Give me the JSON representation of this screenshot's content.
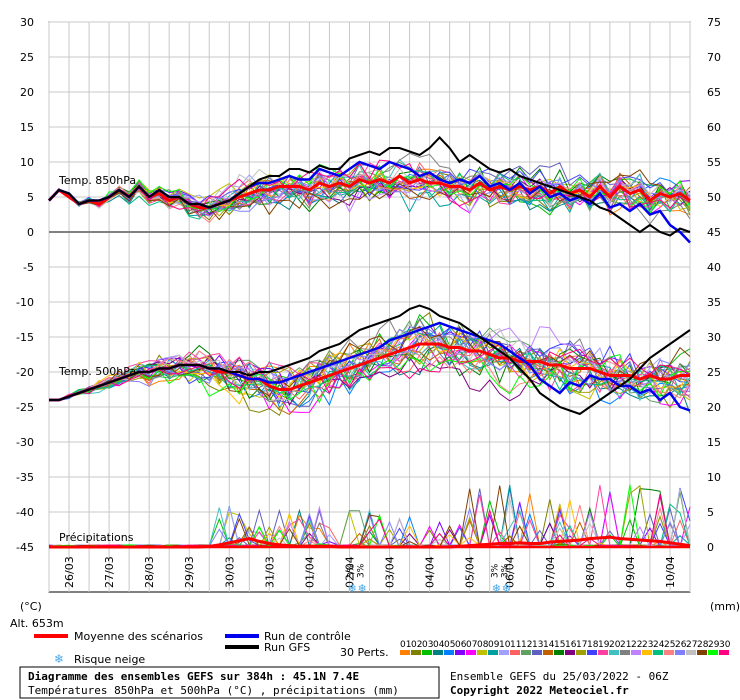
{
  "chart_data": {
    "type": "line",
    "title": "Diagramme des ensembles GEFS sur 384h : 45.1N 7.4E",
    "subtitle": "Températures 850hPa et 500hPa (°C) , précipitations (mm)",
    "run_info": "Ensemble GEFS du 25/03/2022 - 06Z",
    "copyright": "Copyright 2022 Meteociel.fr",
    "altitude": "Alt. 653m",
    "left_unit": "(°C)",
    "right_unit": "(mm)",
    "y_left_ticks": [
      "30",
      "25",
      "20",
      "15",
      "10",
      "5",
      "0",
      "-5",
      "-10",
      "-15",
      "-20",
      "-25",
      "-30",
      "-35",
      "-40",
      "-45"
    ],
    "y_right_ticks": [
      "75",
      "70",
      "65",
      "60",
      "55",
      "50",
      "45",
      "40",
      "35",
      "30",
      "25",
      "20",
      "15",
      "10",
      "5",
      "0"
    ],
    "ylim_left": [
      -45,
      30
    ],
    "dates": [
      "26/03",
      "27/03",
      "28/03",
      "29/03",
      "30/03",
      "31/03",
      "01/04",
      "02/04",
      "03/04",
      "04/04",
      "05/04",
      "06/04",
      "07/04",
      "08/04",
      "09/04",
      "10/04"
    ],
    "labels": {
      "t850": "Temp. 850hPa",
      "t500": "Temp. 500hPa",
      "precip": "Précipitations"
    },
    "snow_markers": [
      {
        "text": "3%",
        "day": 7.6
      },
      {
        "text": "3%",
        "day": 11.2
      }
    ],
    "series": [
      {
        "name": "Moyenne des scénarios",
        "color": "#ff0000",
        "t850": [
          4.5,
          6,
          5,
          4,
          4.5,
          4,
          5,
          6,
          5,
          6.5,
          5,
          5.5,
          4.5,
          5,
          4,
          3.5,
          3.5,
          4,
          4.5,
          5,
          5.5,
          6,
          6,
          6.5,
          6.5,
          6.5,
          6,
          7,
          6.5,
          7,
          6.5,
          7.5,
          7,
          7.5,
          7,
          8,
          7,
          7.5,
          7,
          7,
          6.5,
          6.5,
          6,
          7,
          6,
          6.5,
          6,
          6.5,
          6,
          6.5,
          5.5,
          6.5,
          5.5,
          6,
          5,
          6.5,
          5,
          6.5,
          5.5,
          6,
          4.5,
          5.5,
          5,
          5.5,
          4.5
        ],
        "t500": [
          -24,
          -24,
          -23.5,
          -23,
          -22.5,
          -22,
          -21.5,
          -21,
          -20.5,
          -20,
          -20,
          -19.5,
          -19.5,
          -19,
          -19,
          -19,
          -19.5,
          -20,
          -20,
          -20.5,
          -21,
          -21,
          -22,
          -22.5,
          -22.5,
          -22,
          -21.5,
          -21,
          -20.5,
          -20,
          -19.5,
          -19,
          -18.5,
          -18,
          -17.5,
          -17,
          -16.5,
          -16,
          -16,
          -16,
          -16.5,
          -16.5,
          -17,
          -17,
          -17.5,
          -18,
          -18,
          -18.5,
          -18.5,
          -18.5,
          -19,
          -19,
          -19.5,
          -19.5,
          -19.5,
          -20,
          -20.5,
          -20.5,
          -20.5,
          -21,
          -20.5,
          -21,
          -21,
          -20.5,
          -20.5
        ]
      },
      {
        "name": "Run de contrôle",
        "color": "#0000ee",
        "t850": [
          4.5,
          6,
          5.5,
          4,
          4.5,
          4.5,
          5,
          6,
          5,
          6.5,
          5,
          6,
          5,
          5,
          4,
          4,
          3.5,
          4,
          4.5,
          5.5,
          6.5,
          7,
          7,
          7.5,
          8,
          7.5,
          7.5,
          9,
          8.5,
          8,
          9,
          10,
          9.5,
          9,
          10,
          9.5,
          9,
          8,
          8.5,
          7.5,
          7,
          7.5,
          7,
          8,
          6.5,
          7,
          6,
          7,
          5.5,
          6.5,
          5,
          5.5,
          4.5,
          5,
          4,
          5.5,
          3.5,
          4,
          3,
          4,
          2.5,
          3,
          1,
          0,
          -1.5
        ],
        "t500": [
          -24,
          -24,
          -23.5,
          -23,
          -22.5,
          -22,
          -21.5,
          -21,
          -20.5,
          -20,
          -20,
          -19.5,
          -19.5,
          -19,
          -19,
          -19,
          -19.5,
          -19.5,
          -20,
          -20.5,
          -21,
          -21,
          -21.5,
          -21.5,
          -21,
          -20.5,
          -20,
          -19.5,
          -19,
          -18.5,
          -18,
          -17.5,
          -17,
          -16.5,
          -15.5,
          -15,
          -14.5,
          -14,
          -13.5,
          -13,
          -13.5,
          -14,
          -14.5,
          -15,
          -15.5,
          -16,
          -17,
          -18,
          -19,
          -21,
          -22,
          -23,
          -21.5,
          -22,
          -20.5,
          -21,
          -21,
          -22,
          -22,
          -23,
          -22.5,
          -24,
          -23,
          -25,
          -25.5
        ]
      },
      {
        "name": "Run GFS",
        "color": "#000000",
        "t850": [
          4.5,
          6,
          5.5,
          4,
          4.5,
          4.5,
          5,
          6,
          5,
          6.5,
          5,
          6,
          5,
          5,
          4,
          4,
          3.5,
          4,
          4.5,
          5.5,
          6.5,
          7.5,
          8,
          8,
          9,
          9,
          8.5,
          9.5,
          9,
          9,
          10.5,
          11,
          11.5,
          11,
          12,
          12,
          11.5,
          11,
          12,
          13.5,
          12,
          10,
          11,
          10,
          9,
          8.5,
          9,
          8,
          7.5,
          7,
          6.5,
          6,
          5.5,
          5,
          4.5,
          3.5,
          3,
          2,
          1,
          0,
          1,
          0,
          -0.5,
          0.5,
          0
        ],
        "t500": [
          -24,
          -24,
          -23.5,
          -23,
          -22.5,
          -22,
          -21.5,
          -21,
          -20.5,
          -20,
          -20,
          -19.5,
          -19.5,
          -19,
          -19,
          -19,
          -19.5,
          -19.5,
          -20,
          -20,
          -20.5,
          -20,
          -20,
          -19.5,
          -19,
          -18.5,
          -18,
          -17,
          -16.5,
          -16,
          -15,
          -14,
          -13.5,
          -13,
          -12.5,
          -12,
          -11,
          -10.5,
          -11,
          -12,
          -12.5,
          -13,
          -14,
          -15,
          -16,
          -17,
          -18,
          -19.5,
          -21,
          -23,
          -24,
          -25,
          -25.5,
          -26,
          -25,
          -24,
          -23,
          -22,
          -21,
          -19.5,
          -18,
          -17,
          -16,
          -15,
          -14
        ]
      },
      {
        "name": "Précipitations (moyenne)",
        "color": "#ff0000",
        "precip": [
          0,
          0,
          0,
          0,
          0,
          0,
          0,
          0,
          0,
          0,
          0,
          0,
          0,
          0,
          0,
          0,
          0.1,
          0.3,
          0.6,
          0.9,
          1.2,
          0.8,
          0.5,
          0.3,
          0.2,
          0.1,
          0.1,
          0.1,
          0.1,
          0,
          0,
          0,
          0,
          0,
          0,
          0,
          0,
          0,
          0,
          0,
          0,
          0.1,
          0.2,
          0.3,
          0.4,
          0.5,
          0.5,
          0.6,
          0.5,
          0.5,
          0.7,
          0.8,
          0.9,
          1,
          1.2,
          1.3,
          1.4,
          1.2,
          1.1,
          1,
          0.9,
          0.8,
          0.6,
          0.4,
          0.2
        ]
      }
    ],
    "perturbation_count_label": "30 Perts.",
    "perturbation_labels": [
      "01",
      "02",
      "03",
      "04",
      "05",
      "06",
      "07",
      "08",
      "09",
      "10",
      "11",
      "12",
      "13",
      "14",
      "15",
      "16",
      "17",
      "18",
      "19",
      "20",
      "21",
      "22",
      "23",
      "24",
      "25",
      "26",
      "27",
      "28",
      "29",
      "30"
    ],
    "perturbation_colors": [
      "#ff8000",
      "#808000",
      "#00c000",
      "#008080",
      "#0080ff",
      "#8000ff",
      "#ff00ff",
      "#c0c000",
      "#00a0a0",
      "#a0a0ff",
      "#ff6060",
      "#60a060",
      "#6060c0",
      "#c06000",
      "#008000",
      "#800080",
      "#a0a000",
      "#4040ff",
      "#ff40a0",
      "#40c0c0",
      "#808080",
      "#c080ff",
      "#ffc000",
      "#00c080",
      "#ff8080",
      "#8080ff",
      "#c0c0c0",
      "#804000",
      "#00ff00",
      "#ff0080"
    ],
    "legend": {
      "mean": "Moyenne des scénarios",
      "control": "Run de contrôle",
      "gfs": "Run GFS",
      "snow": "Risque neige"
    }
  }
}
